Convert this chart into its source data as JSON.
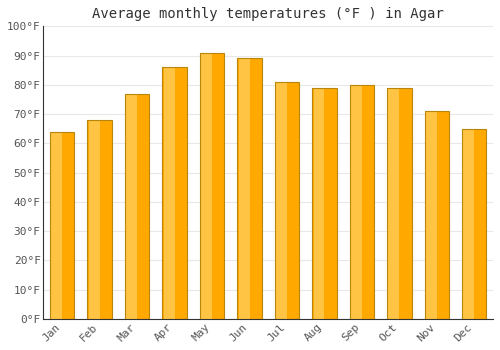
{
  "title": "Average monthly temperatures (°F ) in Agar",
  "months": [
    "Jan",
    "Feb",
    "Mar",
    "Apr",
    "May",
    "Jun",
    "Jul",
    "Aug",
    "Sep",
    "Oct",
    "Nov",
    "Dec"
  ],
  "values": [
    64,
    68,
    77,
    86,
    91,
    89,
    81,
    79,
    80,
    79,
    71,
    65
  ],
  "bar_color_main": "#FFA800",
  "bar_color_light": "#FFD060",
  "bar_edge_color": "#B8860B",
  "ylim": [
    0,
    100
  ],
  "yticks": [
    0,
    10,
    20,
    30,
    40,
    50,
    60,
    70,
    80,
    90,
    100
  ],
  "ytick_labels": [
    "0°F",
    "10°F",
    "20°F",
    "30°F",
    "40°F",
    "50°F",
    "60°F",
    "70°F",
    "80°F",
    "90°F",
    "100°F"
  ],
  "background_color": "#ffffff",
  "plot_bg_color": "#ffffff",
  "grid_color": "#e8e8e8",
  "title_fontsize": 10,
  "tick_fontsize": 8,
  "bar_width": 0.65
}
